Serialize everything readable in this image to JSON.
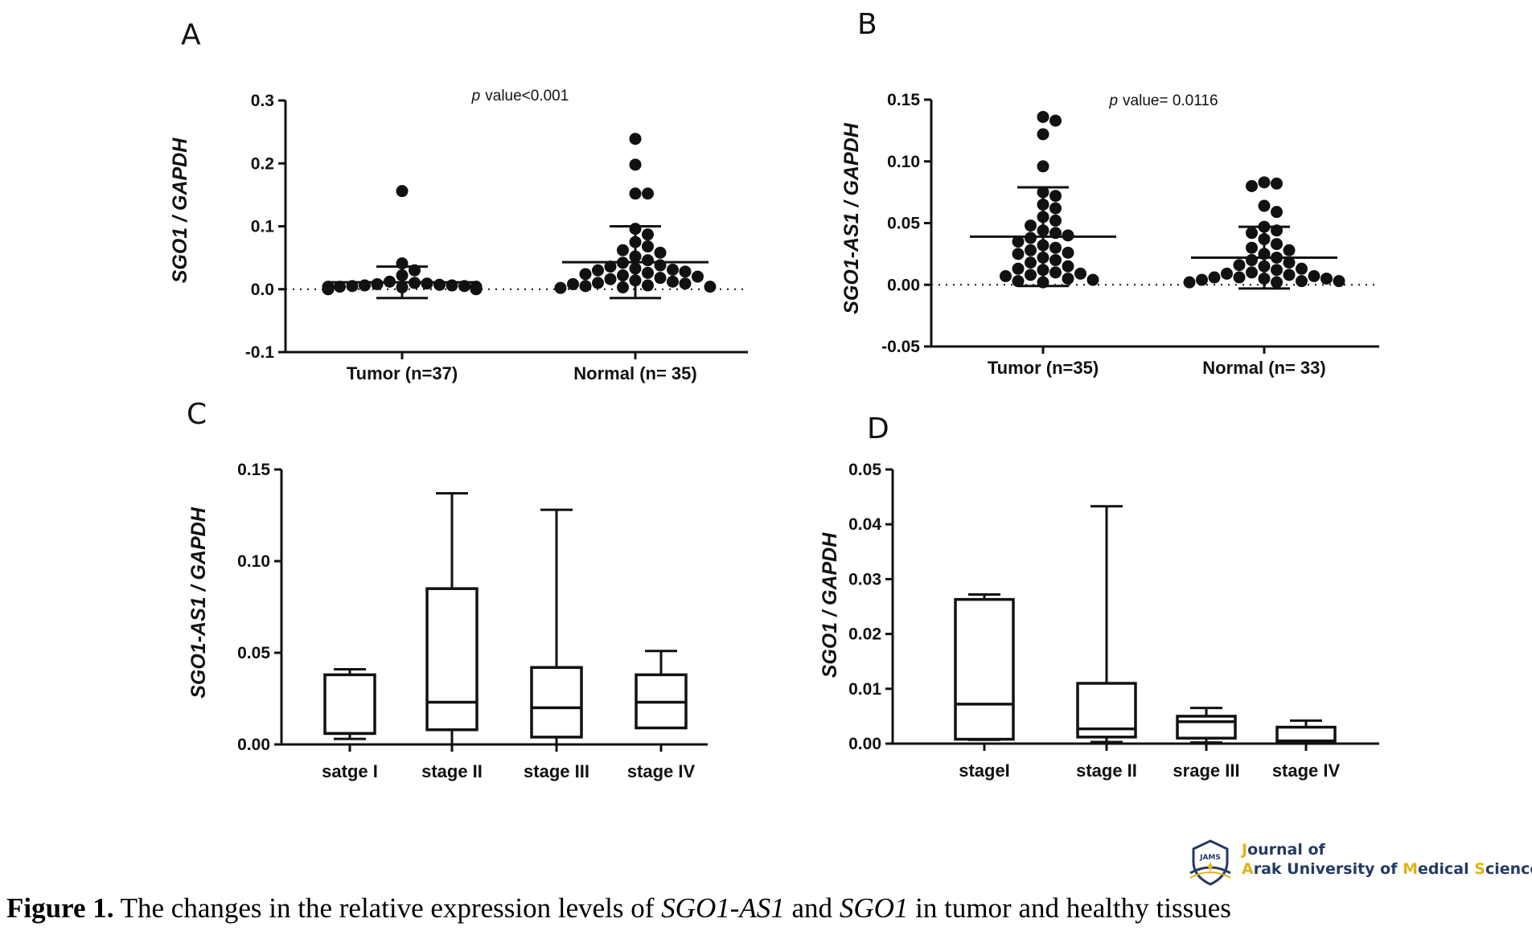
{
  "chart_data": [
    {
      "panel": "A",
      "type": "scatter",
      "ylabel": "SGO1 / GAPDH",
      "ylim": [
        -0.1,
        0.3
      ],
      "yticks": [
        -0.1,
        0.0,
        0.1,
        0.2,
        0.3
      ],
      "ytick_labels": [
        "-0.1",
        "0.0",
        "0.1",
        "0.2",
        "0.3"
      ],
      "annotation_prefix": "p",
      "annotation": "value<0.001",
      "categories": [
        "Tumor (n=37)",
        "Normal (n= 35)"
      ],
      "groups": [
        {
          "name": "Tumor (n=37)",
          "mean": 0.011,
          "sd_upper": 0.036,
          "sd_lower": -0.014,
          "points": [
            0.156,
            0.041,
            0.03,
            0.022,
            0.012,
            0.01,
            0.009,
            0.008,
            0.007,
            0.006,
            0.006,
            0.005,
            0.005,
            0.004,
            0.004,
            0.004,
            0.003,
            0.003,
            0.003,
            0.003,
            0.002,
            0.002,
            0.002,
            0.002,
            0.002,
            0.001,
            0.001,
            0.001,
            0.001,
            0.001,
            0.001,
            0.001,
            0.0,
            0.0,
            0.0,
            0.0,
            0.0
          ]
        },
        {
          "name": "Normal (n= 35)",
          "mean": 0.043,
          "sd_upper": 0.1,
          "sd_lower": -0.014,
          "points": [
            0.239,
            0.198,
            0.152,
            0.152,
            0.096,
            0.087,
            0.075,
            0.068,
            0.062,
            0.058,
            0.052,
            0.046,
            0.042,
            0.038,
            0.036,
            0.033,
            0.031,
            0.03,
            0.028,
            0.026,
            0.024,
            0.022,
            0.02,
            0.018,
            0.016,
            0.014,
            0.012,
            0.01,
            0.009,
            0.008,
            0.006,
            0.005,
            0.004,
            0.003,
            0.002
          ]
        }
      ]
    },
    {
      "panel": "B",
      "type": "scatter",
      "ylabel": "SGO1-AS1 / GAPDH",
      "ylim": [
        -0.05,
        0.15
      ],
      "yticks": [
        -0.05,
        0.0,
        0.05,
        0.1,
        0.15
      ],
      "ytick_labels": [
        "-0.05",
        "0.00",
        "0.05",
        "0.10",
        "0.15"
      ],
      "annotation_prefix": "p",
      "annotation": "value= 0.0116",
      "categories": [
        "Tumor (n=35)",
        "Normal (n= 33)"
      ],
      "groups": [
        {
          "name": "Tumor (n=35)",
          "mean": 0.039,
          "sd_upper": 0.079,
          "sd_lower": -0.001,
          "points": [
            0.136,
            0.133,
            0.122,
            0.096,
            0.075,
            0.072,
            0.065,
            0.062,
            0.055,
            0.052,
            0.048,
            0.044,
            0.042,
            0.04,
            0.038,
            0.035,
            0.032,
            0.03,
            0.028,
            0.026,
            0.025,
            0.022,
            0.02,
            0.018,
            0.015,
            0.013,
            0.012,
            0.01,
            0.009,
            0.008,
            0.007,
            0.005,
            0.004,
            0.003,
            0.002
          ]
        },
        {
          "name": "Normal (n= 33)",
          "mean": 0.022,
          "sd_upper": 0.047,
          "sd_lower": -0.003,
          "points": [
            0.083,
            0.082,
            0.08,
            0.064,
            0.059,
            0.047,
            0.044,
            0.042,
            0.037,
            0.033,
            0.03,
            0.028,
            0.025,
            0.022,
            0.02,
            0.018,
            0.016,
            0.015,
            0.013,
            0.012,
            0.01,
            0.009,
            0.008,
            0.007,
            0.006,
            0.006,
            0.005,
            0.005,
            0.004,
            0.003,
            0.003,
            0.002,
            0.002
          ]
        }
      ]
    },
    {
      "panel": "C",
      "type": "box",
      "ylabel": "SGO1-AS1 / GAPDH",
      "ylim": [
        0,
        0.15
      ],
      "yticks": [
        0,
        0.05,
        0.1,
        0.15
      ],
      "ytick_labels": [
        "0.00",
        "0.05",
        "0.10",
        "0.15"
      ],
      "categories": [
        "satge I",
        "stage II",
        "stage III",
        "stage IV"
      ],
      "boxes": [
        {
          "min": 0.003,
          "q1": 0.006,
          "median": 0.006,
          "q3": 0.038,
          "max": 0.041
        },
        {
          "min": 0.0,
          "q1": 0.008,
          "median": 0.023,
          "q3": 0.085,
          "max": 0.137
        },
        {
          "min": 0.0,
          "q1": 0.004,
          "median": 0.02,
          "q3": 0.042,
          "max": 0.128
        },
        {
          "min": 0.009,
          "q1": 0.009,
          "median": 0.023,
          "q3": 0.038,
          "max": 0.051
        }
      ]
    },
    {
      "panel": "D",
      "type": "box",
      "ylabel": "SGO1 / GAPDH",
      "ylim": [
        0,
        0.05
      ],
      "yticks": [
        0,
        0.01,
        0.02,
        0.03,
        0.04,
        0.05
      ],
      "ytick_labels": [
        "0.00",
        "0.01",
        "0.02",
        "0.03",
        "0.04",
        "0.05"
      ],
      "categories": [
        "stageI",
        "stage II",
        "srage III",
        "stage IV"
      ],
      "boxes": [
        {
          "min": 0.0007,
          "q1": 0.0008,
          "median": 0.0072,
          "q3": 0.0263,
          "max": 0.0272
        },
        {
          "min": 0.0003,
          "q1": 0.0012,
          "median": 0.0027,
          "q3": 0.011,
          "max": 0.0433
        },
        {
          "min": 0.0002,
          "q1": 0.001,
          "median": 0.004,
          "q3": 0.005,
          "max": 0.0065
        },
        {
          "min": 0.0,
          "q1": 0.0002,
          "median": 0.0005,
          "q3": 0.003,
          "max": 0.0042
        }
      ]
    }
  ],
  "logo": {
    "line1_accent": "J",
    "line1_rest": "ournal of",
    "line2_a1": "A",
    "line2_r1": "rak University of ",
    "line2_a2": "M",
    "line2_r2": "edical ",
    "line2_a3": "S",
    "line2_r3": "ciences",
    "emblem_text": "JAMS",
    "colors": {
      "navy": "#233a66",
      "gold": "#e0b21c"
    }
  },
  "caption": {
    "label": "Figure 1.",
    "text1": " The changes in the relative expression levels of ",
    "gene1": "SGO1-AS1",
    "text2": " and ",
    "gene2": "SGO1",
    "text3": " in tumor and healthy tissues"
  }
}
